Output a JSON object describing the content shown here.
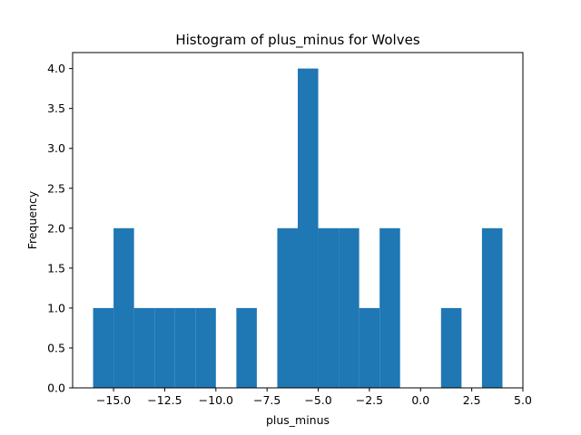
{
  "chart_data": {
    "type": "bar",
    "title": "Histogram of plus_minus for Wolves",
    "xlabel": "plus_minus",
    "ylabel": "Frequency",
    "bar_color": "#1f77b4",
    "xlim": [
      -17,
      5
    ],
    "ylim": [
      0,
      4.2
    ],
    "x_ticks": [
      -15.0,
      -12.5,
      -10.0,
      -7.5,
      -5.0,
      -2.5,
      0.0,
      2.5,
      5.0
    ],
    "x_tick_labels": [
      "−15.0",
      "−12.5",
      "−10.0",
      "−7.5",
      "−5.0",
      "−2.5",
      "0.0",
      "2.5",
      "5.0"
    ],
    "y_ticks": [
      0,
      0.5,
      1,
      1.5,
      2,
      2.5,
      3,
      3.5,
      4
    ],
    "y_tick_labels": [
      "0.0",
      "0.5",
      "1.0",
      "1.5",
      "2.0",
      "2.5",
      "3.0",
      "3.5",
      "4.0"
    ],
    "bins": [
      {
        "x0": -16,
        "x1": -15,
        "count": 1
      },
      {
        "x0": -15,
        "x1": -14,
        "count": 2
      },
      {
        "x0": -14,
        "x1": -13,
        "count": 1
      },
      {
        "x0": -13,
        "x1": -12,
        "count": 1
      },
      {
        "x0": -12,
        "x1": -11,
        "count": 1
      },
      {
        "x0": -11,
        "x1": -10,
        "count": 1
      },
      {
        "x0": -10,
        "x1": -9,
        "count": 0
      },
      {
        "x0": -9,
        "x1": -8,
        "count": 1
      },
      {
        "x0": -8,
        "x1": -7,
        "count": 0
      },
      {
        "x0": -7,
        "x1": -6,
        "count": 2
      },
      {
        "x0": -6,
        "x1": -5,
        "count": 4
      },
      {
        "x0": -5,
        "x1": -4,
        "count": 2
      },
      {
        "x0": -4,
        "x1": -3,
        "count": 2
      },
      {
        "x0": -3,
        "x1": -2,
        "count": 1
      },
      {
        "x0": -2,
        "x1": -1,
        "count": 2
      },
      {
        "x0": -1,
        "x1": 0,
        "count": 0
      },
      {
        "x0": 0,
        "x1": 1,
        "count": 0
      },
      {
        "x0": 1,
        "x1": 2,
        "count": 1
      },
      {
        "x0": 2,
        "x1": 3,
        "count": 0
      },
      {
        "x0": 3,
        "x1": 4,
        "count": 2
      }
    ]
  }
}
